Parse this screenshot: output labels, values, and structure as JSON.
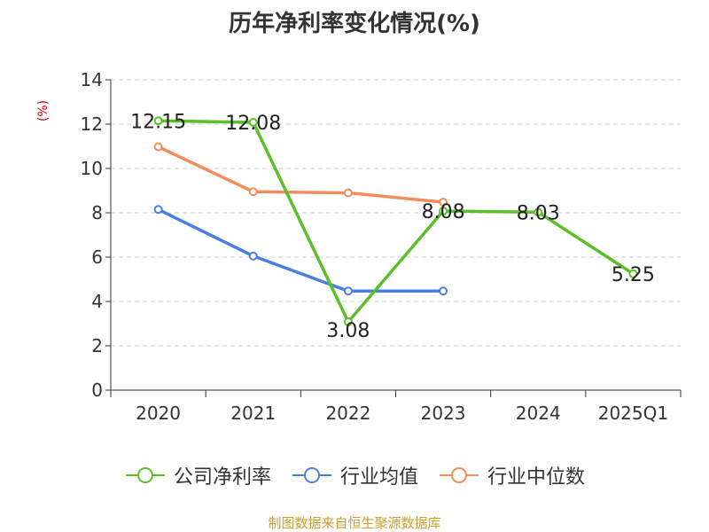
{
  "title": "历年净利率变化情况(%)",
  "source": "制图数据来自恒生聚源数据库",
  "chart_data": {
    "type": "line",
    "title": "历年净利率变化情况(%)",
    "ylabel": "(%)",
    "xlabel": "",
    "ylim": [
      0,
      14
    ],
    "yticks": [
      0,
      2,
      4,
      6,
      8,
      10,
      12,
      14
    ],
    "categories": [
      "2020",
      "2021",
      "2022",
      "2023",
      "2024",
      "2025Q1"
    ],
    "grid": true,
    "legend_position": "bottom",
    "series": [
      {
        "name": "公司净利率",
        "color": "#5cbf2a",
        "values": [
          12.15,
          12.08,
          3.08,
          8.08,
          8.03,
          5.25
        ],
        "labels": [
          "12.15",
          "12.08",
          "3.08",
          "8.08",
          "8.03",
          "5.25"
        ]
      },
      {
        "name": "行业均值",
        "color": "#4a7fdc",
        "values": [
          8.15,
          6.05,
          4.47,
          4.47,
          null,
          null
        ]
      },
      {
        "name": "行业中位数",
        "color": "#f28e5b",
        "values": [
          10.98,
          8.95,
          8.9,
          8.48,
          null,
          null
        ]
      }
    ]
  }
}
